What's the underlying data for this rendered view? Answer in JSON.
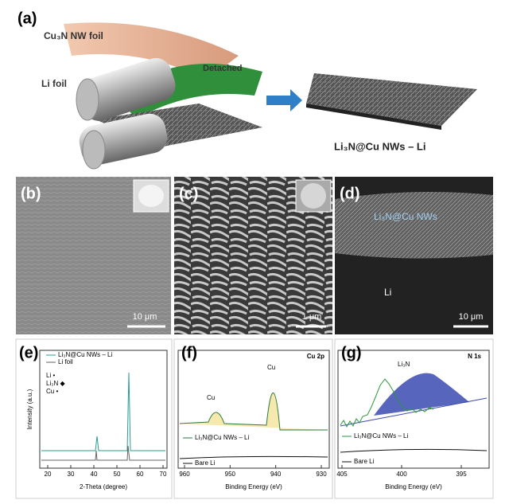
{
  "panel_a": {
    "label": "(a)",
    "foil": "Cu₃N NW foil",
    "li_foil": "Li foil",
    "detached": "Detached",
    "product": "Li₃N@Cu NWs – Li"
  },
  "panel_b": {
    "label": "(b)",
    "scale": "10 μm"
  },
  "panel_c": {
    "label": "(c)",
    "scale": "1 μm"
  },
  "panel_d": {
    "label": "(d)",
    "layer": "Li₃N@Cu NWs",
    "li": "Li",
    "scale": "10 μm"
  },
  "panel_e": {
    "label": "(e)",
    "legend": [
      "Li₃N@Cu NWs – Li",
      "Li foil"
    ],
    "markers": [
      "Li •",
      "Li₃N ◆",
      "Cu •"
    ],
    "ylabel": "Intensity (a.u.)",
    "xlabel": "2-Theta (degree)",
    "xticks": [
      20,
      30,
      40,
      50,
      60,
      70
    ]
  },
  "panel_f": {
    "label": "(f)",
    "title": "Cu 2p",
    "peaks": [
      "Cu",
      "Cu"
    ],
    "legend": [
      "Li₃N@Cu NWs – Li",
      "Bare Li"
    ],
    "xlabel": "Binding Energy (eV)",
    "xticks": [
      960,
      950,
      940,
      930
    ]
  },
  "panel_g": {
    "label": "(g)",
    "title": "N 1s",
    "peak": "Li₃N",
    "legend": [
      "Li₃N@Cu NWs – Li",
      "Bare Li"
    ],
    "xlabel": "Binding Energy (eV)",
    "xticks": [
      405,
      400,
      395
    ]
  }
}
